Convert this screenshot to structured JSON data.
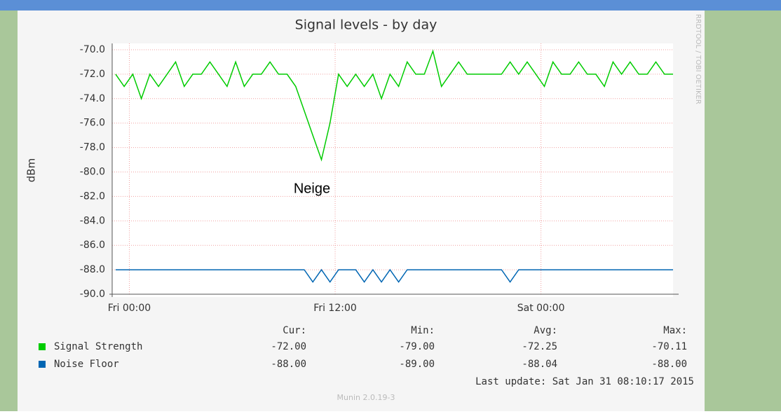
{
  "chart_data": {
    "type": "line",
    "title": "Signal levels - by day",
    "y_label": "dBm",
    "side_label": "RRDTOOL / TOBI OETIKER",
    "annotation": "Neige",
    "x": [
      -0.8,
      -0.3,
      0.2,
      0.7,
      1.2,
      1.7,
      2.2,
      2.7,
      3.2,
      3.7,
      4.2,
      4.7,
      5.2,
      5.7,
      6.2,
      6.7,
      7.2,
      7.7,
      8.2,
      8.7,
      9.2,
      9.7,
      10.2,
      10.7,
      11.2,
      11.7,
      12.2,
      12.7,
      13.2,
      13.7,
      14.2,
      14.7,
      15.2,
      15.7,
      16.2,
      16.7,
      17.2,
      17.7,
      18.2,
      18.7,
      19.2,
      19.7,
      20.2,
      20.7,
      21.2,
      21.7,
      22.2,
      22.7,
      23.2,
      23.7,
      24.2,
      24.7,
      25.2,
      25.7,
      26.2,
      26.7,
      27.2,
      27.7,
      28.2,
      28.7,
      29.2,
      29.7,
      30.2,
      30.7,
      31.2,
      31.7
    ],
    "xlim": [
      -1,
      31.7
    ],
    "xticks": [
      {
        "value": 0,
        "label": "Fri 00:00"
      },
      {
        "value": 12,
        "label": "Fri 12:00"
      },
      {
        "value": 24,
        "label": "Sat 00:00"
      }
    ],
    "ylim": [
      -90,
      -70
    ],
    "yticks": [
      {
        "value": -70,
        "label": "-70.0"
      },
      {
        "value": -72,
        "label": "-72.0"
      },
      {
        "value": -74,
        "label": "-74.0"
      },
      {
        "value": -76,
        "label": "-76.0"
      },
      {
        "value": -78,
        "label": "-78.0"
      },
      {
        "value": -80,
        "label": "-80.0"
      },
      {
        "value": -82,
        "label": "-82.0"
      },
      {
        "value": -84,
        "label": "-84.0"
      },
      {
        "value": -86,
        "label": "-86.0"
      },
      {
        "value": -88,
        "label": "-88.0"
      },
      {
        "value": -90,
        "label": "-90.0"
      }
    ],
    "grid": true,
    "series": [
      {
        "name": "Signal Strength",
        "color": "#00cc00",
        "values": [
          -72,
          -73,
          -72,
          -74,
          -72,
          -73,
          -72,
          -71,
          -73,
          -72,
          -72,
          -71,
          -72,
          -73,
          -71,
          -73,
          -72,
          -72,
          -71,
          -72,
          -72,
          -73,
          -75,
          -77,
          -79,
          -76,
          -72,
          -73,
          -72,
          -73,
          -72,
          -74,
          -72,
          -73,
          -71,
          -72,
          -72,
          -70.11,
          -73,
          -72,
          -71,
          -72,
          -72,
          -72,
          -72,
          -72,
          -71,
          -72,
          -71,
          -72,
          -73,
          -71,
          -72,
          -72,
          -71,
          -72,
          -72,
          -73,
          -71,
          -72,
          -71,
          -72,
          -72,
          -71,
          -72,
          -72
        ]
      },
      {
        "name": "Noise Floor",
        "color": "#0066b3",
        "values": [
          -88,
          -88,
          -88,
          -88,
          -88,
          -88,
          -88,
          -88,
          -88,
          -88,
          -88,
          -88,
          -88,
          -88,
          -88,
          -88,
          -88,
          -88,
          -88,
          -88,
          -88,
          -88,
          -88,
          -89,
          -88,
          -89,
          -88,
          -88,
          -88,
          -89,
          -88,
          -89,
          -88,
          -89,
          -88,
          -88,
          -88,
          -88,
          -88,
          -88,
          -88,
          -88,
          -88,
          -88,
          -88,
          -88,
          -89,
          -88,
          -88,
          -88,
          -88,
          -88,
          -88,
          -88,
          -88,
          -88,
          -88,
          -88,
          -88,
          -88,
          -88,
          -88,
          -88,
          -88,
          -88,
          -88
        ]
      }
    ]
  },
  "legend_table": {
    "headers": [
      "Cur:",
      "Min:",
      "Avg:",
      "Max:"
    ],
    "rows": [
      [
        "-72.00",
        "-79.00",
        "-72.25",
        "-70.11"
      ],
      [
        "-88.00",
        "-89.00",
        "-88.04",
        "-88.00"
      ]
    ]
  },
  "footer": {
    "last_update": "Last update:  Sat Jan 31 08:10:17 2015",
    "version": "Munin 2.0.19-3"
  }
}
